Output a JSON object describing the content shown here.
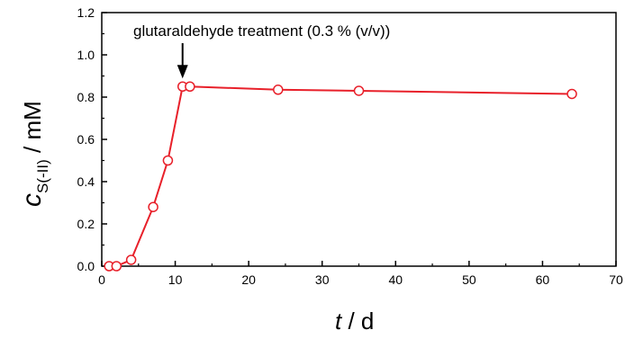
{
  "chart_data": {
    "type": "line",
    "title": "",
    "xlabel_var": "t",
    "xlabel_unit": " / d",
    "ylabel_var": "c",
    "ylabel_sub": "S(-II)",
    "ylabel_unit": " / mM",
    "xlim": [
      0,
      70
    ],
    "ylim": [
      0,
      1.2
    ],
    "x_ticks": [
      "0",
      "10",
      "20",
      "30",
      "40",
      "50",
      "60",
      "70"
    ],
    "y_ticks": [
      "0.0",
      "0.2",
      "0.4",
      "0.6",
      "0.8",
      "1.0",
      "1.2"
    ],
    "grid": false,
    "legend": "none",
    "series": [
      {
        "x": [
          1,
          2,
          4,
          7,
          9,
          11,
          12,
          24,
          35,
          64
        ],
        "values": [
          0.0,
          0.0,
          0.03,
          0.28,
          0.5,
          0.85,
          0.85,
          0.835,
          0.83,
          0.815
        ],
        "color": "#e8202a"
      }
    ],
    "annotation": {
      "text": "glutaraldehyde treatment (0.3 % (v/v))",
      "x": 11,
      "y": 0.85
    }
  }
}
